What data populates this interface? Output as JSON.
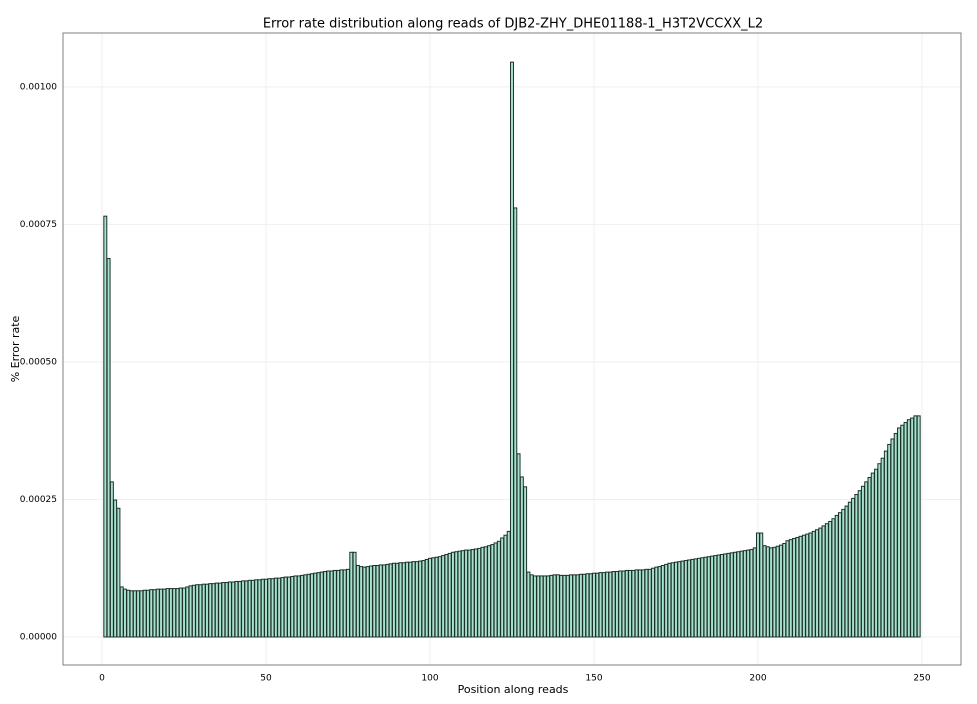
{
  "chart_data": {
    "type": "bar",
    "title": "Error rate distribution along reads of DJB2-ZHY_DHE01188-1_H3T2VCCXX_L2",
    "x_label": "Position along reads",
    "y_label": "% Error rate",
    "x": [
      1,
      2,
      3,
      4,
      5,
      6,
      7,
      8,
      9,
      10,
      11,
      12,
      13,
      14,
      15,
      16,
      17,
      18,
      19,
      20,
      21,
      22,
      23,
      24,
      25,
      26,
      27,
      28,
      29,
      30,
      31,
      32,
      33,
      34,
      35,
      36,
      37,
      38,
      39,
      40,
      41,
      42,
      43,
      44,
      45,
      46,
      47,
      48,
      49,
      50,
      51,
      52,
      53,
      54,
      55,
      56,
      57,
      58,
      59,
      60,
      61,
      62,
      63,
      64,
      65,
      66,
      67,
      68,
      69,
      70,
      71,
      72,
      73,
      74,
      75,
      76,
      77,
      78,
      79,
      80,
      81,
      82,
      83,
      84,
      85,
      86,
      87,
      88,
      89,
      90,
      91,
      92,
      93,
      94,
      95,
      96,
      97,
      98,
      99,
      100,
      101,
      102,
      103,
      104,
      105,
      106,
      107,
      108,
      109,
      110,
      111,
      112,
      113,
      114,
      115,
      116,
      117,
      118,
      119,
      120,
      121,
      122,
      123,
      124,
      125,
      126,
      127,
      128,
      129,
      130,
      131,
      132,
      133,
      134,
      135,
      136,
      137,
      138,
      139,
      140,
      141,
      142,
      143,
      144,
      145,
      146,
      147,
      148,
      149,
      150,
      151,
      152,
      153,
      154,
      155,
      156,
      157,
      158,
      159,
      160,
      161,
      162,
      163,
      164,
      165,
      166,
      167,
      168,
      169,
      170,
      171,
      172,
      173,
      174,
      175,
      176,
      177,
      178,
      179,
      180,
      181,
      182,
      183,
      184,
      185,
      186,
      187,
      188,
      189,
      190,
      191,
      192,
      193,
      194,
      195,
      196,
      197,
      198,
      199,
      200,
      201,
      202,
      203,
      204,
      205,
      206,
      207,
      208,
      209,
      210,
      211,
      212,
      213,
      214,
      215,
      216,
      217,
      218,
      219,
      220,
      221,
      222,
      223,
      224,
      225,
      226,
      227,
      228,
      229,
      230,
      231,
      232,
      233,
      234,
      235,
      236,
      237,
      238,
      239,
      240,
      241,
      242,
      243,
      244,
      245,
      246,
      247,
      248,
      249
    ],
    "values": [
      0.000765,
      0.000688,
      0.000282,
      0.000249,
      0.000234,
      9.1e-05,
      8.7e-05,
      8.5e-05,
      8.4e-05,
      8.4e-05,
      8.4e-05,
      8.4e-05,
      8.5e-05,
      8.5e-05,
      8.6e-05,
      8.6e-05,
      8.7e-05,
      8.7e-05,
      8.7e-05,
      8.8e-05,
      8.8e-05,
      8.8e-05,
      8.8e-05,
      8.9e-05,
      8.9e-05,
      9.1e-05,
      9.3e-05,
      9.4e-05,
      9.5e-05,
      9.5e-05,
      9.6e-05,
      9.6e-05,
      9.7e-05,
      9.7e-05,
      9.8e-05,
      9.8e-05,
      9.9e-05,
      9.9e-05,
      0.0001,
      0.0001,
      0.000101,
      0.000101,
      0.000102,
      0.000102,
      0.000103,
      0.000103,
      0.000104,
      0.000104,
      0.000105,
      0.000105,
      0.000106,
      0.000106,
      0.000107,
      0.000107,
      0.000108,
      0.000109,
      0.000109,
      0.00011,
      0.000111,
      0.000111,
      0.000112,
      0.000113,
      0.000114,
      0.000115,
      0.000116,
      0.000117,
      0.000118,
      0.000119,
      0.00012,
      0.00012,
      0.000121,
      0.000121,
      0.000122,
      0.000122,
      0.000123,
      0.000154,
      0.000154,
      0.00013,
      0.000128,
      0.000127,
      0.000128,
      0.000129,
      0.00013,
      0.00013,
      0.000131,
      0.000131,
      0.000132,
      0.000133,
      0.000134,
      0.000134,
      0.000135,
      0.000135,
      0.000136,
      0.000136,
      0.000137,
      0.000137,
      0.000138,
      0.000139,
      0.000141,
      0.000143,
      0.000144,
      0.000145,
      0.000146,
      0.000148,
      0.00015,
      0.000152,
      0.000154,
      0.000155,
      0.000156,
      0.000157,
      0.000158,
      0.000158,
      0.000159,
      0.00016,
      0.000161,
      0.000163,
      0.000164,
      0.000166,
      0.000168,
      0.000171,
      0.000174,
      0.00018,
      0.000185,
      0.000192,
      0.001045,
      0.00078,
      0.000333,
      0.000291,
      0.000273,
      0.000118,
      0.000113,
      0.000111,
      0.000111,
      0.000111,
      0.000111,
      0.000111,
      0.000112,
      0.000113,
      0.000113,
      0.000112,
      0.000112,
      0.000112,
      0.000113,
      0.000113,
      0.000113,
      0.000114,
      0.000114,
      0.000115,
      0.000115,
      0.000116,
      0.000116,
      0.000117,
      0.000117,
      0.000118,
      0.000118,
      0.000119,
      0.000119,
      0.00012,
      0.00012,
      0.000121,
      0.000121,
      0.000121,
      0.000122,
      0.000122,
      0.000122,
      0.000123,
      0.000123,
      0.000125,
      0.000127,
      0.000128,
      0.00013,
      0.000132,
      0.000134,
      0.000135,
      0.000136,
      0.000137,
      0.000138,
      0.000139,
      0.00014,
      0.000141,
      0.000142,
      0.000143,
      0.000144,
      0.000145,
      0.000146,
      0.000147,
      0.000148,
      0.000149,
      0.00015,
      0.000151,
      0.000152,
      0.000153,
      0.000154,
      0.000155,
      0.000156,
      0.000157,
      0.000158,
      0.000159,
      0.000162,
      0.000189,
      0.000189,
      0.000166,
      0.000164,
      0.000162,
      0.000163,
      0.000165,
      0.000167,
      0.00017,
      0.000175,
      0.000177,
      0.000179,
      0.000181,
      0.000183,
      0.000185,
      0.000187,
      0.000189,
      0.000192,
      0.000195,
      0.000198,
      0.000202,
      0.000206,
      0.00021,
      0.000215,
      0.000221,
      0.000226,
      0.000232,
      0.000238,
      0.000245,
      0.000252,
      0.000259,
      0.000266,
      0.000274,
      0.000282,
      0.00029,
      0.000298,
      0.000305,
      0.000315,
      0.000325,
      0.000338,
      0.00035,
      0.00036,
      0.00037,
      0.00038,
      0.000385,
      0.00039,
      0.000395,
      0.000398,
      0.000402,
      0.000402
    ],
    "color": "#a9e2cc",
    "edge_color": "#1c302b",
    "xlim": [
      -11.9,
      261.9
    ],
    "xticks": [
      0,
      50,
      100,
      150,
      200,
      250
    ],
    "ylim": [
      -5.09e-05,
      0.001098
    ],
    "yticks": [
      {
        "value": 0,
        "label": "0.00000"
      },
      {
        "value": 0.00025,
        "label": "0.00025"
      },
      {
        "value": 0.0005,
        "label": "0.00050"
      },
      {
        "value": 0.00075,
        "label": "0.00075"
      },
      {
        "value": 0.001,
        "label": "0.00100"
      }
    ],
    "grid": true
  }
}
